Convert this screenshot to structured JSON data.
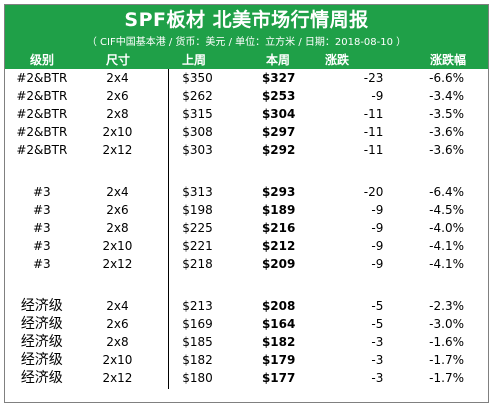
{
  "title": "SPF板材 北美市场行情周报",
  "subtitle": "（ CIF中国基本港 / 货币：美元 / 单位：立方米 / 日期：2018-08-10 ）",
  "columns": {
    "grade": "级别",
    "size": "尺寸",
    "last_week": "上周",
    "this_week": "本周",
    "change": "涨跌",
    "change_pct": "涨跌幅"
  },
  "groups": [
    {
      "rows": [
        {
          "grade": "#2&BTR",
          "size": "2x4",
          "last": "$350",
          "cur": "$327",
          "chg": "-23",
          "pct": "-6.6%"
        },
        {
          "grade": "#2&BTR",
          "size": "2x6",
          "last": "$262",
          "cur": "$253",
          "chg": "-9",
          "pct": "-3.4%"
        },
        {
          "grade": "#2&BTR",
          "size": "2x8",
          "last": "$315",
          "cur": "$304",
          "chg": "-11",
          "pct": "-3.5%"
        },
        {
          "grade": "#2&BTR",
          "size": "2x10",
          "last": "$308",
          "cur": "$297",
          "chg": "-11",
          "pct": "-3.6%"
        },
        {
          "grade": "#2&BTR",
          "size": "2x12",
          "last": "$303",
          "cur": "$292",
          "chg": "-11",
          "pct": "-3.6%"
        }
      ]
    },
    {
      "rows": [
        {
          "grade": "#3",
          "size": "2x4",
          "last": "$313",
          "cur": "$293",
          "chg": "-20",
          "pct": "-6.4%"
        },
        {
          "grade": "#3",
          "size": "2x6",
          "last": "$198",
          "cur": "$189",
          "chg": "-9",
          "pct": "-4.5%"
        },
        {
          "grade": "#3",
          "size": "2x8",
          "last": "$225",
          "cur": "$216",
          "chg": "-9",
          "pct": "-4.0%"
        },
        {
          "grade": "#3",
          "size": "2x10",
          "last": "$221",
          "cur": "$212",
          "chg": "-9",
          "pct": "-4.1%"
        },
        {
          "grade": "#3",
          "size": "2x12",
          "last": "$218",
          "cur": "$209",
          "chg": "-9",
          "pct": "-4.1%"
        }
      ]
    },
    {
      "rows": [
        {
          "grade": "经济级",
          "size": "2x4",
          "last": "$213",
          "cur": "$208",
          "chg": "-5",
          "pct": "-2.3%"
        },
        {
          "grade": "经济级",
          "size": "2x6",
          "last": "$169",
          "cur": "$164",
          "chg": "-5",
          "pct": "-3.0%"
        },
        {
          "grade": "经济级",
          "size": "2x8",
          "last": "$185",
          "cur": "$182",
          "chg": "-3",
          "pct": "-1.6%"
        },
        {
          "grade": "经济级",
          "size": "2x10",
          "last": "$182",
          "cur": "$179",
          "chg": "-3",
          "pct": "-1.7%"
        },
        {
          "grade": "经济级",
          "size": "2x12",
          "last": "$180",
          "cur": "$177",
          "chg": "-3",
          "pct": "-1.7%"
        }
      ]
    }
  ],
  "colors": {
    "header_bg": "#1fa048",
    "header_text": "#ffffff",
    "divider": "#000000"
  }
}
